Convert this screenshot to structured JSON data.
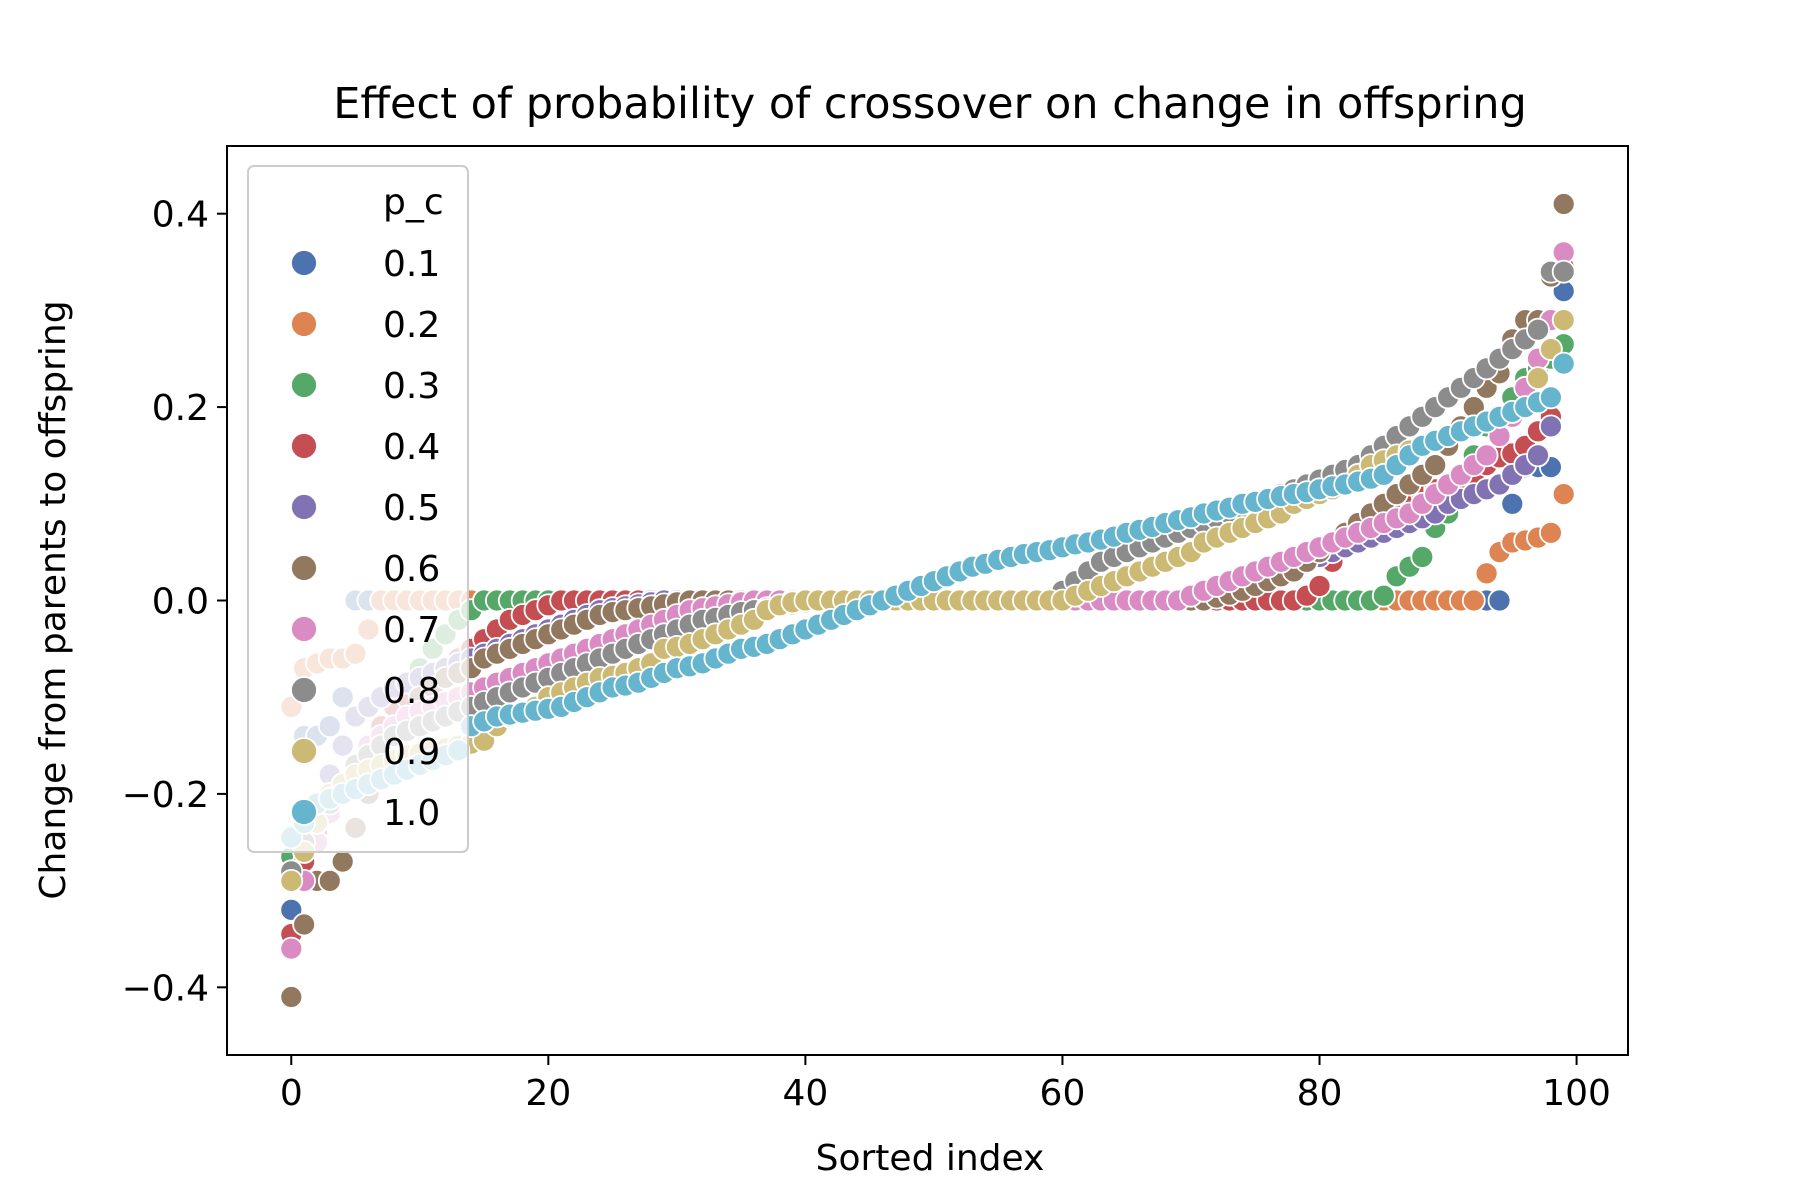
{
  "chart_data": {
    "type": "scatter",
    "title": "Effect of probability of crossover on change in offspring",
    "xlabel": "Sorted index",
    "ylabel": "Change from parents to offspring",
    "xlim": [
      -5,
      104
    ],
    "ylim": [
      -0.47,
      0.47
    ],
    "xticks": [
      0,
      20,
      40,
      60,
      80,
      100
    ],
    "yticks": [
      -0.4,
      -0.2,
      0.0,
      0.2,
      0.4
    ],
    "ytick_labels": [
      "−0.4",
      "−0.2",
      "0.0",
      "0.2",
      "0.4"
    ],
    "grid": false,
    "legend": {
      "title": "p_c",
      "placement": "upper-left"
    },
    "series": [
      {
        "name": "0.1",
        "color": "#4c72b0",
        "y": [
          -0.32,
          -0.14,
          -0.14,
          -0.13,
          -0.1,
          0.0,
          0.0,
          0.0,
          0.0,
          0.0,
          0.0,
          0.0,
          0.0,
          0.0,
          0.0,
          0.0,
          0.0,
          0.0,
          0.0,
          0.0,
          0.0,
          0.0,
          0.0,
          0.0,
          0.0,
          0.0,
          0.0,
          0.0,
          0.0,
          0.0,
          0.0,
          0.0,
          0.0,
          0.0,
          0.0,
          0.0,
          0.0,
          0.0,
          0.0,
          0.0,
          0.0,
          0.0,
          0.0,
          0.0,
          0.0,
          0.0,
          0.0,
          0.0,
          0.0,
          0.0,
          0.0,
          0.0,
          0.0,
          0.0,
          0.0,
          0.0,
          0.0,
          0.0,
          0.0,
          0.0,
          0.0,
          0.0,
          0.0,
          0.0,
          0.0,
          0.0,
          0.0,
          0.0,
          0.0,
          0.0,
          0.0,
          0.0,
          0.0,
          0.0,
          0.0,
          0.0,
          0.0,
          0.0,
          0.0,
          0.0,
          0.0,
          0.0,
          0.0,
          0.0,
          0.0,
          0.0,
          0.0,
          0.0,
          0.0,
          0.0,
          0.0,
          0.0,
          0.0,
          0.0,
          0.0,
          0.1,
          0.138,
          0.138,
          0.138,
          0.32
        ]
      },
      {
        "name": "0.2",
        "color": "#dd8452",
        "y": [
          -0.11,
          -0.07,
          -0.065,
          -0.06,
          -0.06,
          -0.055,
          -0.03,
          0.0,
          0.0,
          0.0,
          0.0,
          0.0,
          0.0,
          0.0,
          0.0,
          0.0,
          0.0,
          0.0,
          0.0,
          0.0,
          0.0,
          0.0,
          0.0,
          0.0,
          0.0,
          0.0,
          0.0,
          0.0,
          0.0,
          0.0,
          0.0,
          0.0,
          0.0,
          0.0,
          0.0,
          0.0,
          0.0,
          0.0,
          0.0,
          0.0,
          0.0,
          0.0,
          0.0,
          0.0,
          0.0,
          0.0,
          0.0,
          0.0,
          0.0,
          0.0,
          0.0,
          0.0,
          0.0,
          0.0,
          0.0,
          0.0,
          0.0,
          0.0,
          0.0,
          0.0,
          0.0,
          0.0,
          0.0,
          0.0,
          0.0,
          0.0,
          0.0,
          0.0,
          0.0,
          0.0,
          0.0,
          0.0,
          0.0,
          0.0,
          0.0,
          0.0,
          0.0,
          0.0,
          0.0,
          0.0,
          0.0,
          0.0,
          0.0,
          0.0,
          0.0,
          0.0,
          0.0,
          0.0,
          0.0,
          0.0,
          0.0,
          0.0,
          0.0,
          0.028,
          0.05,
          0.06,
          0.062,
          0.065,
          0.07,
          0.11
        ]
      },
      {
        "name": "0.3",
        "color": "#55a868",
        "y": [
          -0.265,
          -0.24,
          -0.23,
          -0.21,
          -0.19,
          -0.17,
          -0.15,
          -0.13,
          -0.11,
          -0.09,
          -0.07,
          -0.05,
          -0.035,
          -0.02,
          -0.01,
          0.0,
          0.0,
          0.0,
          0.0,
          0.0,
          0.0,
          0.0,
          0.0,
          0.0,
          0.0,
          0.0,
          0.0,
          0.0,
          0.0,
          0.0,
          0.0,
          0.0,
          0.0,
          0.0,
          0.0,
          0.0,
          0.0,
          0.0,
          0.0,
          0.0,
          0.0,
          0.0,
          0.0,
          0.0,
          0.0,
          0.0,
          0.0,
          0.0,
          0.0,
          0.0,
          0.0,
          0.0,
          0.0,
          0.0,
          0.0,
          0.0,
          0.0,
          0.0,
          0.0,
          0.0,
          0.0,
          0.0,
          0.0,
          0.0,
          0.0,
          0.0,
          0.0,
          0.0,
          0.0,
          0.0,
          0.0,
          0.0,
          0.0,
          0.0,
          0.0,
          0.0,
          0.0,
          0.0,
          0.0,
          0.0,
          0.0,
          0.0,
          0.0,
          0.0,
          0.0,
          0.005,
          0.025,
          0.035,
          0.045,
          0.075,
          0.09,
          0.12,
          0.15,
          0.18,
          0.19,
          0.21,
          0.23,
          0.24,
          0.25,
          0.265
        ]
      },
      {
        "name": "0.4",
        "color": "#c44e52",
        "y": [
          -0.345,
          -0.27,
          -0.24,
          -0.21,
          -0.19,
          -0.17,
          -0.15,
          -0.13,
          -0.11,
          -0.1,
          -0.09,
          -0.08,
          -0.07,
          -0.06,
          -0.05,
          -0.04,
          -0.03,
          -0.02,
          -0.015,
          -0.01,
          -0.005,
          0.0,
          0.0,
          0.0,
          0.0,
          0.0,
          0.0,
          0.0,
          0.0,
          0.0,
          0.0,
          0.0,
          0.0,
          0.0,
          0.0,
          0.0,
          0.0,
          0.0,
          0.0,
          0.0,
          0.0,
          0.0,
          0.0,
          0.0,
          0.0,
          0.0,
          0.0,
          0.0,
          0.0,
          0.0,
          0.0,
          0.0,
          0.0,
          0.0,
          0.0,
          0.0,
          0.0,
          0.0,
          0.0,
          0.0,
          0.0,
          0.0,
          0.0,
          0.0,
          0.0,
          0.0,
          0.0,
          0.0,
          0.0,
          0.0,
          0.0,
          0.0,
          0.0,
          0.0,
          0.0,
          0.0,
          0.0,
          0.0,
          0.0,
          0.005,
          0.015,
          0.04,
          0.055,
          0.065,
          0.075,
          0.085,
          0.095,
          0.105,
          0.11,
          0.115,
          0.12,
          0.125,
          0.13,
          0.14,
          0.148,
          0.152,
          0.16,
          0.175,
          0.19,
          0.345
        ]
      },
      {
        "name": "0.5",
        "color": "#8172b3",
        "y": [
          -0.29,
          -0.26,
          -0.23,
          -0.18,
          -0.15,
          -0.12,
          -0.11,
          -0.1,
          -0.09,
          -0.085,
          -0.08,
          -0.075,
          -0.07,
          -0.065,
          -0.06,
          -0.055,
          -0.05,
          -0.045,
          -0.04,
          -0.035,
          -0.03,
          -0.025,
          -0.02,
          -0.015,
          -0.01,
          -0.008,
          -0.006,
          -0.004,
          -0.002,
          0.0,
          0.0,
          0.0,
          0.0,
          0.0,
          0.0,
          0.0,
          0.0,
          0.0,
          0.0,
          0.0,
          0.0,
          0.0,
          0.0,
          0.0,
          0.0,
          0.0,
          0.0,
          0.0,
          0.0,
          0.0,
          0.0,
          0.0,
          0.0,
          0.0,
          0.0,
          0.0,
          0.0,
          0.0,
          0.0,
          0.0,
          0.0,
          0.0,
          0.0,
          0.0,
          0.0,
          0.0,
          0.0,
          0.0,
          0.0,
          0.0,
          0.0,
          0.0,
          0.005,
          0.01,
          0.015,
          0.02,
          0.025,
          0.03,
          0.035,
          0.04,
          0.045,
          0.05,
          0.055,
          0.06,
          0.065,
          0.07,
          0.075,
          0.08,
          0.085,
          0.09,
          0.1,
          0.105,
          0.11,
          0.115,
          0.12,
          0.13,
          0.14,
          0.15,
          0.18,
          0.29
        ]
      },
      {
        "name": "0.6",
        "color": "#937860",
        "y": [
          -0.41,
          -0.335,
          -0.29,
          -0.29,
          -0.27,
          -0.235,
          -0.2,
          -0.17,
          -0.14,
          -0.12,
          -0.1,
          -0.09,
          -0.08,
          -0.075,
          -0.07,
          -0.06,
          -0.055,
          -0.05,
          -0.045,
          -0.04,
          -0.035,
          -0.03,
          -0.025,
          -0.02,
          -0.015,
          -0.012,
          -0.01,
          -0.008,
          -0.006,
          -0.004,
          -0.002,
          0.0,
          0.0,
          0.0,
          0.0,
          0.0,
          0.0,
          0.0,
          0.0,
          0.0,
          0.0,
          0.0,
          0.0,
          0.0,
          0.0,
          0.0,
          0.0,
          0.0,
          0.0,
          0.0,
          0.0,
          0.0,
          0.0,
          0.0,
          0.0,
          0.0,
          0.0,
          0.0,
          0.0,
          0.0,
          0.0,
          0.0,
          0.0,
          0.0,
          0.0,
          0.0,
          0.0,
          0.0,
          0.0,
          0.0,
          0.0,
          0.0,
          0.003,
          0.006,
          0.01,
          0.015,
          0.02,
          0.025,
          0.03,
          0.04,
          0.05,
          0.06,
          0.07,
          0.08,
          0.09,
          0.1,
          0.11,
          0.12,
          0.13,
          0.14,
          0.16,
          0.18,
          0.2,
          0.22,
          0.235,
          0.27,
          0.29,
          0.29,
          0.335,
          0.41
        ]
      },
      {
        "name": "0.7",
        "color": "#da8bc3",
        "y": [
          -0.36,
          -0.29,
          -0.25,
          -0.22,
          -0.19,
          -0.17,
          -0.15,
          -0.14,
          -0.13,
          -0.12,
          -0.115,
          -0.11,
          -0.105,
          -0.1,
          -0.095,
          -0.09,
          -0.085,
          -0.08,
          -0.075,
          -0.07,
          -0.065,
          -0.06,
          -0.055,
          -0.05,
          -0.045,
          -0.04,
          -0.035,
          -0.03,
          -0.025,
          -0.02,
          -0.015,
          -0.01,
          -0.008,
          -0.006,
          -0.004,
          -0.002,
          0.0,
          0.0,
          0.0,
          0.0,
          0.0,
          0.0,
          0.0,
          0.0,
          0.0,
          0.0,
          0.0,
          0.0,
          0.0,
          0.0,
          0.0,
          0.0,
          0.0,
          0.0,
          0.0,
          0.0,
          0.0,
          0.0,
          0.0,
          0.0,
          0.0,
          0.0,
          0.0,
          0.0,
          0.0,
          0.0,
          0.0,
          0.0,
          0.0,
          0.0,
          0.005,
          0.01,
          0.015,
          0.02,
          0.025,
          0.03,
          0.035,
          0.04,
          0.045,
          0.05,
          0.055,
          0.06,
          0.065,
          0.07,
          0.075,
          0.08,
          0.085,
          0.09,
          0.1,
          0.11,
          0.12,
          0.13,
          0.14,
          0.15,
          0.17,
          0.19,
          0.22,
          0.25,
          0.29,
          0.36
        ]
      },
      {
        "name": "0.8",
        "color": "#8c8c8c",
        "y": [
          -0.28,
          -0.25,
          -0.23,
          -0.21,
          -0.19,
          -0.17,
          -0.16,
          -0.15,
          -0.14,
          -0.135,
          -0.13,
          -0.125,
          -0.12,
          -0.115,
          -0.11,
          -0.105,
          -0.1,
          -0.095,
          -0.09,
          -0.085,
          -0.08,
          -0.075,
          -0.07,
          -0.065,
          -0.06,
          -0.055,
          -0.05,
          -0.045,
          -0.04,
          -0.035,
          -0.03,
          -0.025,
          -0.02,
          -0.018,
          -0.015,
          -0.012,
          -0.01,
          -0.008,
          -0.006,
          -0.004,
          -0.002,
          0.0,
          0.0,
          0.0,
          0.0,
          0.0,
          0.0,
          0.0,
          0.0,
          0.0,
          0.0,
          0.0,
          0.0,
          0.0,
          0.0,
          0.0,
          0.0,
          0.0,
          0.0,
          0.0,
          0.01,
          0.02,
          0.03,
          0.04,
          0.045,
          0.05,
          0.055,
          0.06,
          0.065,
          0.07,
          0.075,
          0.08,
          0.085,
          0.09,
          0.095,
          0.1,
          0.105,
          0.11,
          0.115,
          0.12,
          0.125,
          0.13,
          0.135,
          0.14,
          0.15,
          0.16,
          0.17,
          0.18,
          0.19,
          0.2,
          0.21,
          0.22,
          0.23,
          0.24,
          0.25,
          0.26,
          0.27,
          0.28,
          0.34,
          0.34
        ]
      },
      {
        "name": "0.9",
        "color": "#ccb974",
        "y": [
          -0.29,
          -0.26,
          -0.23,
          -0.2,
          -0.19,
          -0.18,
          -0.175,
          -0.17,
          -0.165,
          -0.16,
          -0.158,
          -0.155,
          -0.153,
          -0.15,
          -0.148,
          -0.145,
          -0.13,
          -0.12,
          -0.115,
          -0.11,
          -0.1,
          -0.095,
          -0.09,
          -0.085,
          -0.08,
          -0.078,
          -0.075,
          -0.07,
          -0.065,
          -0.05,
          -0.048,
          -0.045,
          -0.04,
          -0.035,
          -0.03,
          -0.025,
          -0.02,
          -0.01,
          -0.005,
          -0.002,
          0.0,
          0.0,
          0.0,
          0.0,
          0.0,
          0.0,
          0.0,
          0.0,
          0.0,
          0.0,
          0.0,
          0.0,
          0.0,
          0.0,
          0.0,
          0.0,
          0.0,
          0.0,
          0.0,
          0.0,
          0.0,
          0.005,
          0.01,
          0.015,
          0.02,
          0.025,
          0.03,
          0.035,
          0.04,
          0.045,
          0.05,
          0.06,
          0.065,
          0.07,
          0.075,
          0.08,
          0.085,
          0.09,
          0.1,
          0.105,
          0.11,
          0.115,
          0.12,
          0.13,
          0.14,
          0.145,
          0.15,
          0.155,
          0.16,
          0.165,
          0.17,
          0.175,
          0.18,
          0.185,
          0.19,
          0.195,
          0.2,
          0.23,
          0.26,
          0.29
        ]
      },
      {
        "name": "1.0",
        "color": "#64b5cd",
        "y": [
          -0.245,
          -0.23,
          -0.21,
          -0.205,
          -0.2,
          -0.195,
          -0.19,
          -0.185,
          -0.18,
          -0.175,
          -0.17,
          -0.165,
          -0.16,
          -0.155,
          -0.13,
          -0.125,
          -0.12,
          -0.118,
          -0.116,
          -0.114,
          -0.112,
          -0.11,
          -0.105,
          -0.1,
          -0.095,
          -0.09,
          -0.088,
          -0.085,
          -0.08,
          -0.075,
          -0.07,
          -0.068,
          -0.065,
          -0.06,
          -0.055,
          -0.05,
          -0.048,
          -0.045,
          -0.04,
          -0.035,
          -0.03,
          -0.025,
          -0.02,
          -0.015,
          -0.01,
          -0.005,
          0.0,
          0.005,
          0.01,
          0.015,
          0.02,
          0.025,
          0.03,
          0.035,
          0.038,
          0.042,
          0.045,
          0.048,
          0.05,
          0.052,
          0.055,
          0.058,
          0.06,
          0.063,
          0.066,
          0.07,
          0.073,
          0.076,
          0.08,
          0.083,
          0.086,
          0.09,
          0.093,
          0.096,
          0.1,
          0.102,
          0.105,
          0.108,
          0.11,
          0.112,
          0.115,
          0.118,
          0.12,
          0.123,
          0.126,
          0.13,
          0.14,
          0.15,
          0.16,
          0.165,
          0.17,
          0.175,
          0.18,
          0.185,
          0.19,
          0.195,
          0.2,
          0.205,
          0.21,
          0.245
        ]
      }
    ]
  }
}
